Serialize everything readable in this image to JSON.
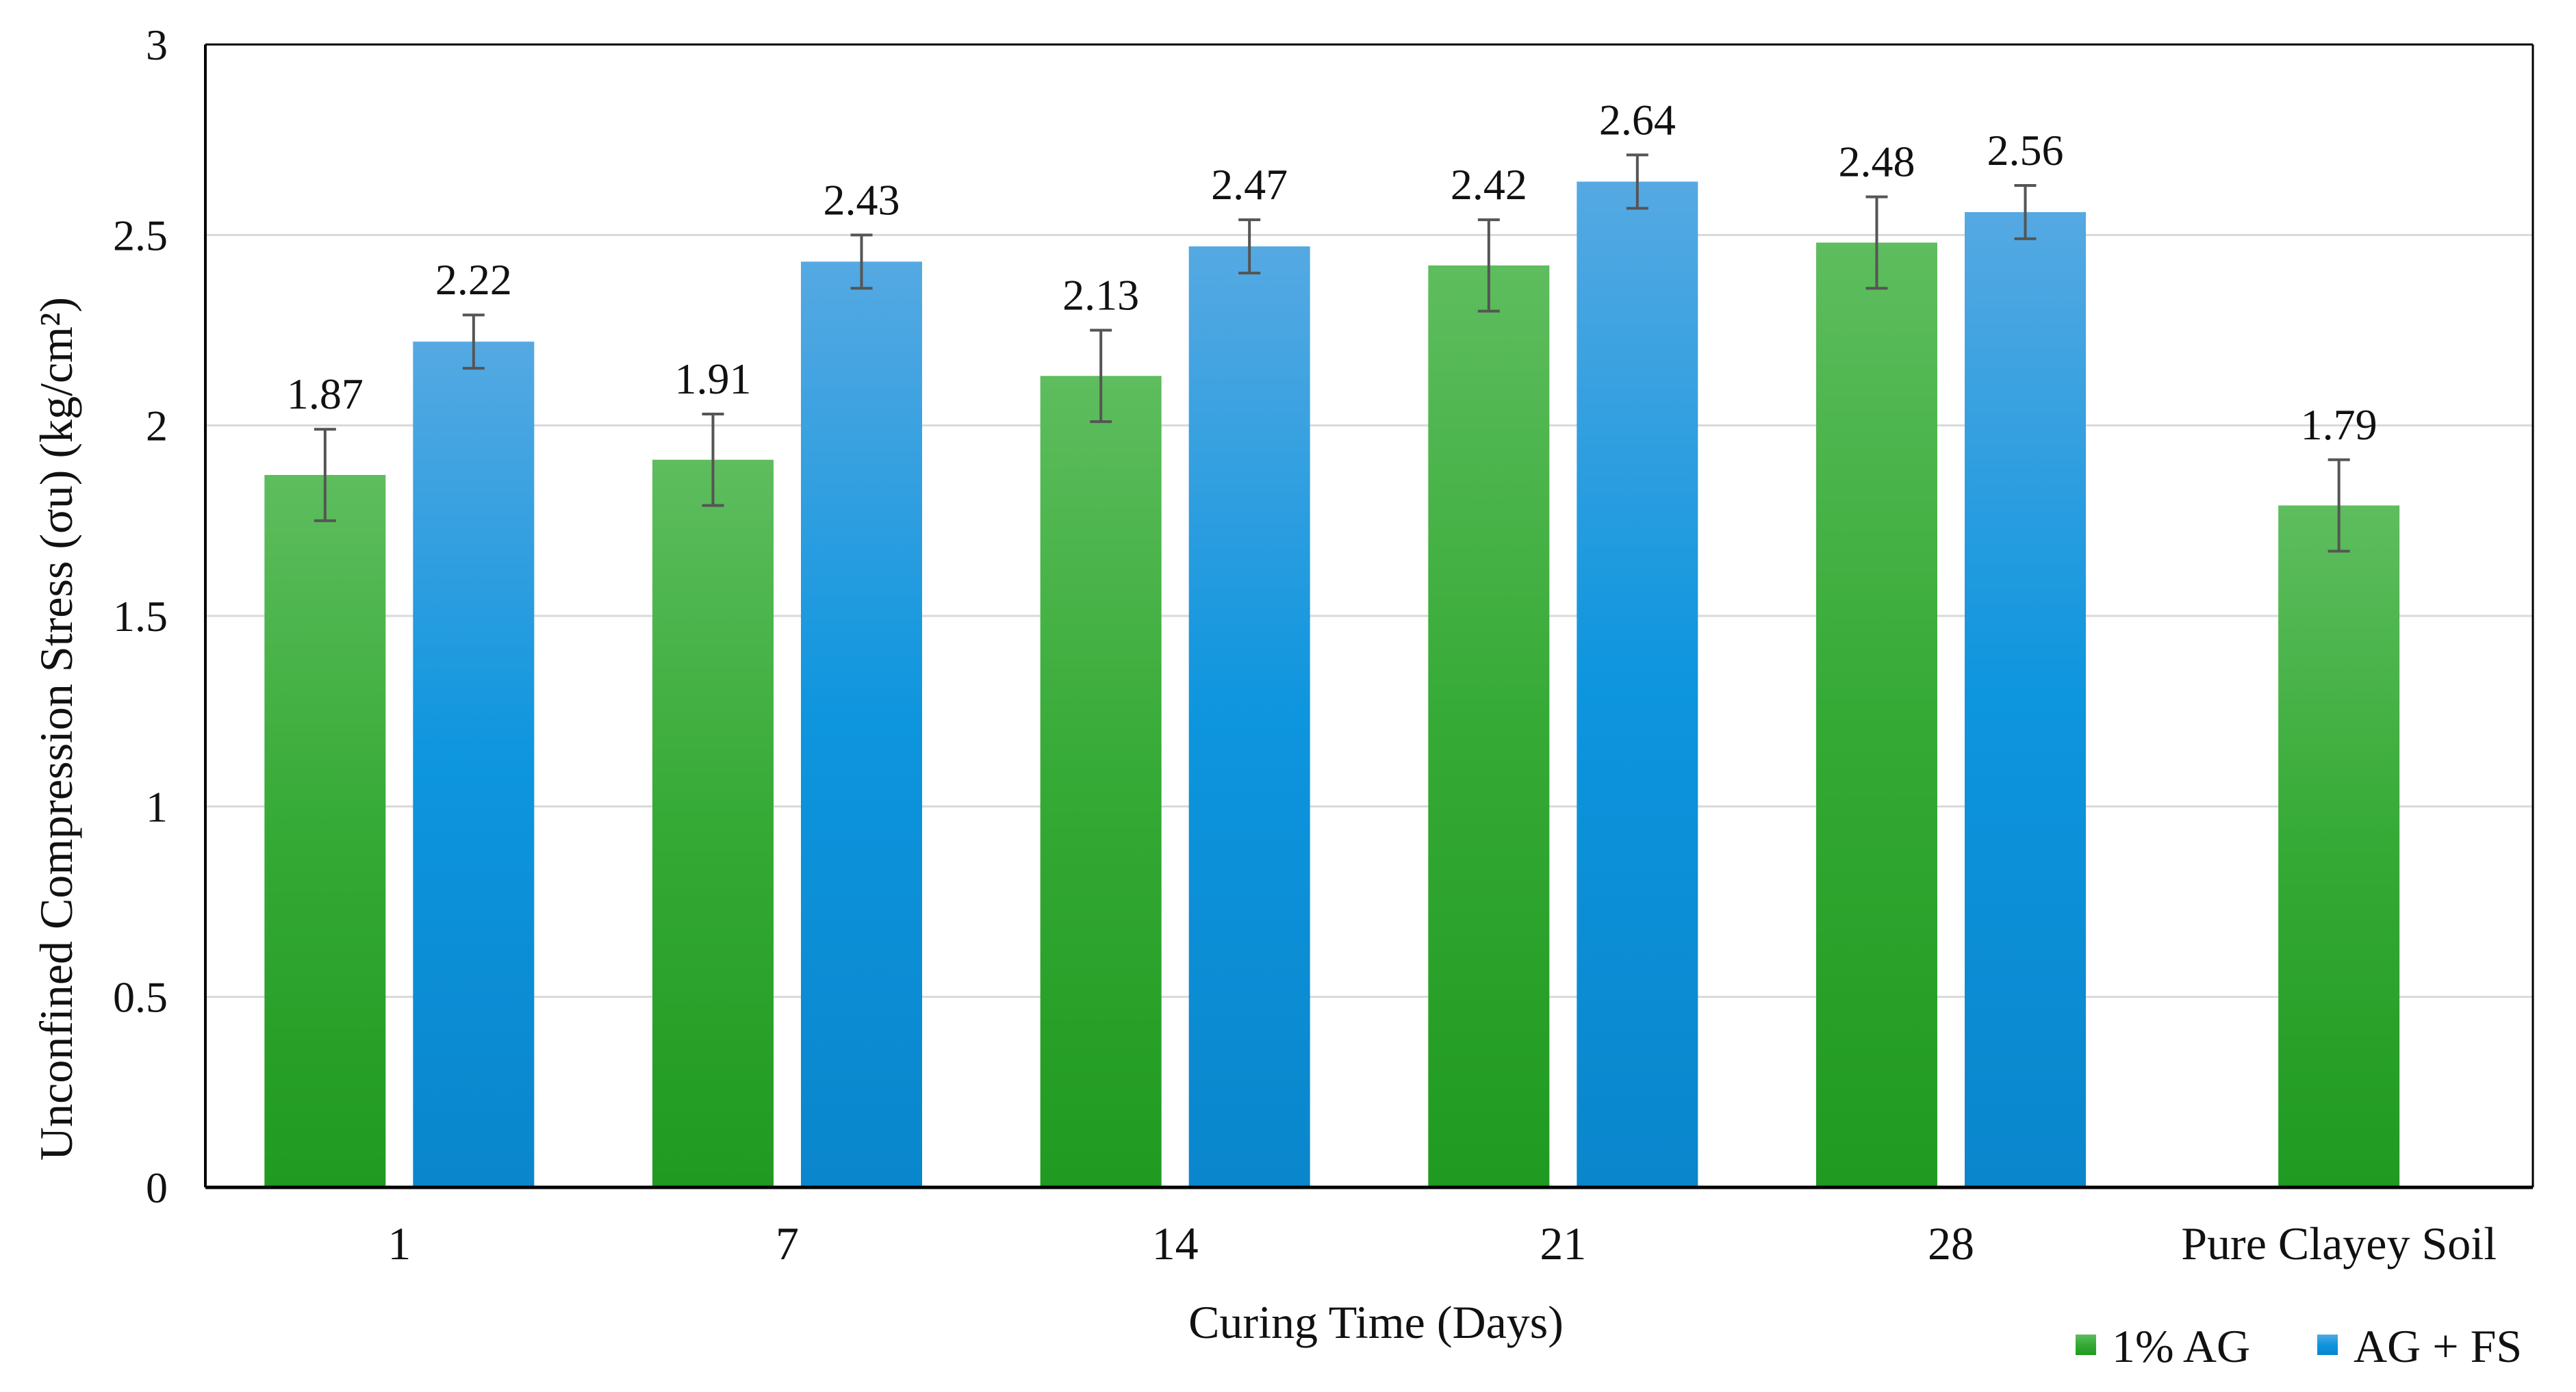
{
  "chart_data": {
    "type": "bar",
    "title": "",
    "xlabel": "Curing Time (Days)",
    "ylabel": "Unconfined Compression Stress (σu) (kg/cm²)",
    "ylim": [
      0,
      3
    ],
    "yticks": [
      "0",
      "0.5",
      "1",
      "1.5",
      "2",
      "2.5",
      "3"
    ],
    "grid": true,
    "legend_position": "bottom-right",
    "categories": [
      "1",
      "7",
      "14",
      "21",
      "28",
      "Pure Clayey Soil"
    ],
    "series": [
      {
        "name": "1% AG",
        "color": "#2e9e2e",
        "values": [
          1.87,
          1.91,
          2.13,
          2.42,
          2.48,
          1.79
        ],
        "labels": [
          "1.87",
          "1.91",
          "2.13",
          "2.42",
          "2.48",
          "1.79"
        ],
        "error": [
          0.12,
          0.12,
          0.12,
          0.12,
          0.12,
          0.12
        ]
      },
      {
        "name": "AG + FS",
        "color": "#1a8fd8",
        "values": [
          2.22,
          2.43,
          2.47,
          2.64,
          2.56,
          null
        ],
        "labels": [
          "2.22",
          "2.43",
          "2.47",
          "2.64",
          "2.56",
          ""
        ],
        "error": [
          0.07,
          0.07,
          0.07,
          0.07,
          0.07,
          null
        ]
      }
    ]
  }
}
